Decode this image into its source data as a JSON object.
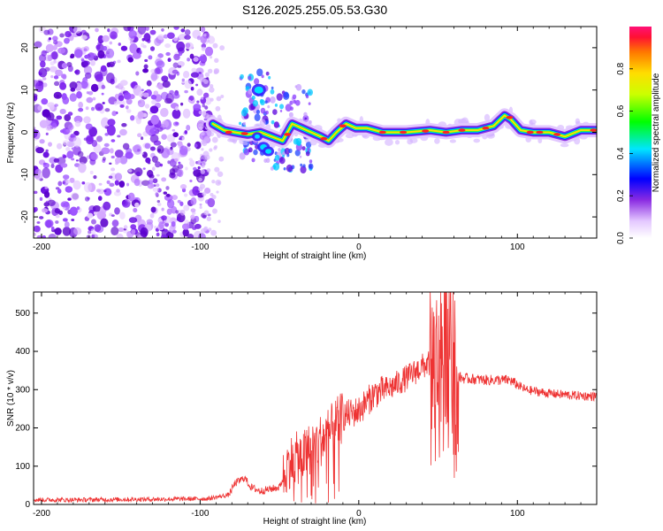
{
  "title": "S126.2025.255.05.53.G30",
  "chart_data": [
    {
      "type": "heatmap",
      "xlabel": "Height of straight line (km)",
      "ylabel": "Frequency (Hz)",
      "xlim": [
        -205,
        150
      ],
      "ylim": [
        -25,
        25
      ],
      "xticks": [
        -200,
        -100,
        0,
        100
      ],
      "yticks": [
        -20,
        -10,
        0,
        10,
        20
      ],
      "colorbar": {
        "label": "Normalized spectral amplitude",
        "range": [
          0,
          1
        ],
        "ticks": [
          "0.0",
          "0.2",
          "0.4",
          "0.6",
          "0.8"
        ]
      },
      "ridge": {
        "x": [
          -92,
          -85,
          -78,
          -70,
          -62,
          -55,
          -48,
          -42,
          -36,
          -30,
          -24,
          -19,
          -14,
          -8,
          -2,
          5,
          15,
          30,
          45,
          55,
          65,
          75,
          85,
          92,
          96,
          102,
          110,
          120,
          130,
          140,
          150
        ],
        "freq": [
          2,
          0.5,
          0,
          -0.5,
          0,
          -1,
          -2,
          2,
          1,
          0,
          -1,
          -2,
          0,
          2,
          1,
          1,
          0,
          0,
          0.5,
          0,
          0.5,
          0.5,
          1.5,
          4,
          3,
          0.5,
          0,
          0,
          -1,
          0.5,
          0.5
        ]
      }
    },
    {
      "type": "line",
      "xlabel": "Height of straight line (km)",
      "ylabel": "SNR (10 * v/v)",
      "xlim": [
        -205,
        150
      ],
      "ylim": [
        0,
        555
      ],
      "xticks": [
        -200,
        -100,
        0,
        100
      ],
      "yticks": [
        0,
        100,
        200,
        300,
        400,
        500
      ],
      "color": "#ee3333",
      "series": [
        {
          "name": "SNR",
          "x": [
            -205,
            -180,
            -150,
            -120,
            -95,
            -82,
            -78,
            -72,
            -68,
            -62,
            -50,
            -44,
            -40,
            -35,
            -30,
            -20,
            -10,
            0,
            10,
            20,
            30,
            40,
            45,
            50,
            55,
            58,
            60,
            62,
            65,
            80,
            95,
            105,
            120,
            135,
            150
          ],
          "values": [
            12,
            12,
            13,
            14,
            15,
            25,
            55,
            70,
            45,
            35,
            45,
            110,
            120,
            125,
            150,
            180,
            230,
            245,
            290,
            305,
            330,
            360,
            370,
            390,
            410,
            380,
            320,
            335,
            330,
            325,
            325,
            300,
            290,
            285,
            282
          ]
        }
      ]
    }
  ]
}
